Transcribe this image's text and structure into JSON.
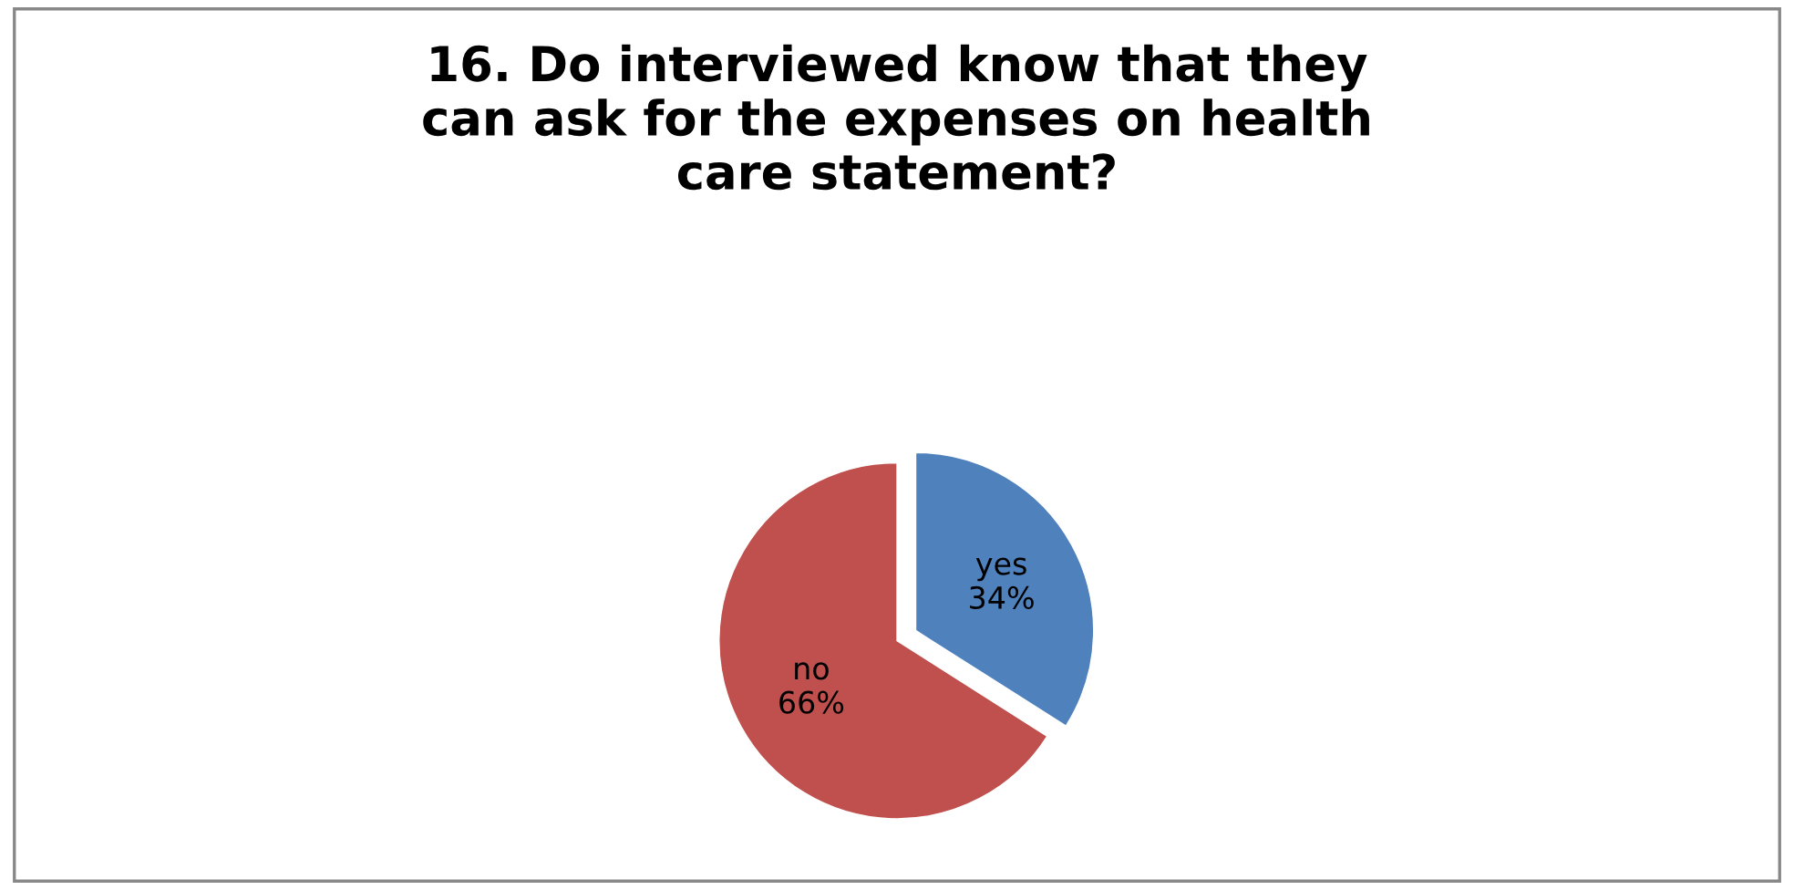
{
  "chart_data": {
    "type": "pie",
    "title": "16. Do interviewed know that they can ask for the expenses on health care statement?",
    "categories": [
      "yes",
      "no"
    ],
    "values": [
      34,
      66
    ],
    "colors": [
      "#4f81bd",
      "#c0504d"
    ],
    "value_labels": [
      "34%",
      "66%"
    ],
    "legend": false
  }
}
